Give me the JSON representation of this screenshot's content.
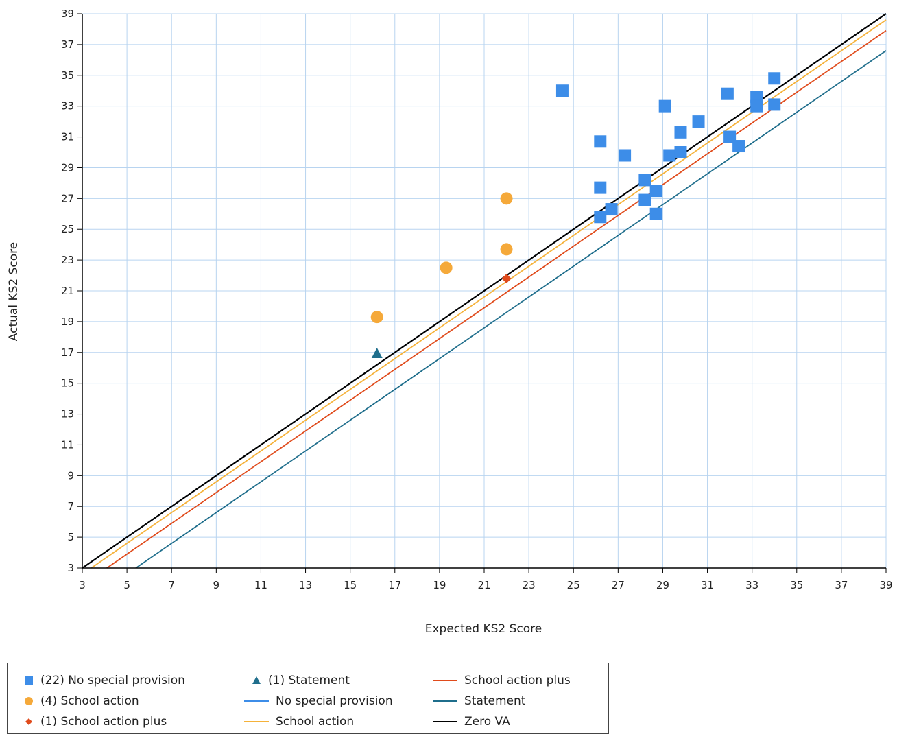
{
  "chart_data": {
    "type": "scatter",
    "xlabel": "Expected KS2 Score",
    "ylabel": "Actual KS2 Score",
    "xlim": [
      3,
      39
    ],
    "ylim": [
      3,
      39
    ],
    "x_ticks": [
      3,
      5,
      7,
      9,
      11,
      13,
      15,
      17,
      19,
      21,
      23,
      25,
      27,
      29,
      31,
      33,
      35,
      37,
      39
    ],
    "y_ticks": [
      3,
      5,
      7,
      9,
      11,
      13,
      15,
      17,
      19,
      21,
      23,
      25,
      27,
      29,
      31,
      33,
      35,
      37,
      39
    ],
    "grid": true,
    "legend_position": "bottom-left",
    "scatter_series": [
      {
        "name": "(22) No special provision",
        "marker": "square",
        "color": "#3d8de8",
        "points": [
          [
            24.5,
            34.0
          ],
          [
            26.2,
            30.7
          ],
          [
            26.2,
            27.7
          ],
          [
            26.2,
            25.8
          ],
          [
            26.7,
            26.3
          ],
          [
            27.3,
            29.8
          ],
          [
            28.2,
            28.2
          ],
          [
            28.2,
            26.9
          ],
          [
            28.7,
            27.5
          ],
          [
            28.7,
            26.0
          ],
          [
            29.1,
            33.0
          ],
          [
            29.3,
            29.8
          ],
          [
            29.8,
            31.3
          ],
          [
            29.8,
            30.0
          ],
          [
            30.6,
            32.0
          ],
          [
            31.9,
            33.8
          ],
          [
            32.0,
            31.0
          ],
          [
            32.4,
            30.4
          ],
          [
            33.2,
            33.6
          ],
          [
            33.2,
            33.0
          ],
          [
            34.0,
            34.8
          ],
          [
            34.0,
            33.1
          ]
        ]
      },
      {
        "name": "(4) School action",
        "marker": "circle",
        "color": "#f5a93a",
        "points": [
          [
            16.2,
            19.3
          ],
          [
            19.3,
            22.5
          ],
          [
            22.0,
            27.0
          ],
          [
            22.0,
            23.7
          ]
        ]
      },
      {
        "name": "(1) School action plus",
        "marker": "diamond",
        "color": "#e04b1c",
        "points": [
          [
            22.0,
            21.8
          ]
        ]
      },
      {
        "name": "(1) Statement",
        "marker": "triangle",
        "color": "#1f6e8c",
        "points": [
          [
            16.2,
            16.9
          ]
        ]
      }
    ],
    "line_series": [
      {
        "name": "No special provision",
        "color": "#3d8de8",
        "offset": 0.0
      },
      {
        "name": "School action",
        "color": "#f5b23a",
        "offset": -0.4
      },
      {
        "name": "School action plus",
        "color": "#e04b1c",
        "offset": -1.1
      },
      {
        "name": "Statement",
        "color": "#1f6e8c",
        "offset": -2.4
      },
      {
        "name": "Zero VA",
        "color": "#000000",
        "offset": 0.0
      }
    ],
    "grid_color": "#b8d4f0"
  },
  "legend": {
    "items": [
      {
        "label": "(22) No special provision",
        "symbol": "square",
        "color": "#3d8de8"
      },
      {
        "label": "(4) School action",
        "symbol": "circle",
        "color": "#f5a93a"
      },
      {
        "label": "(1) School action plus",
        "symbol": "diamond",
        "color": "#e04b1c"
      },
      {
        "label": "(1) Statement",
        "symbol": "triangle",
        "color": "#1f6e8c"
      },
      {
        "label": "No special provision",
        "symbol": "line",
        "color": "#3d8de8"
      },
      {
        "label": "School action",
        "symbol": "line",
        "color": "#f5b23a"
      },
      {
        "label": "School action plus",
        "symbol": "line",
        "color": "#e04b1c"
      },
      {
        "label": "Statement",
        "symbol": "line",
        "color": "#1f6e8c"
      },
      {
        "label": "Zero VA",
        "symbol": "line",
        "color": "#000000"
      }
    ]
  }
}
